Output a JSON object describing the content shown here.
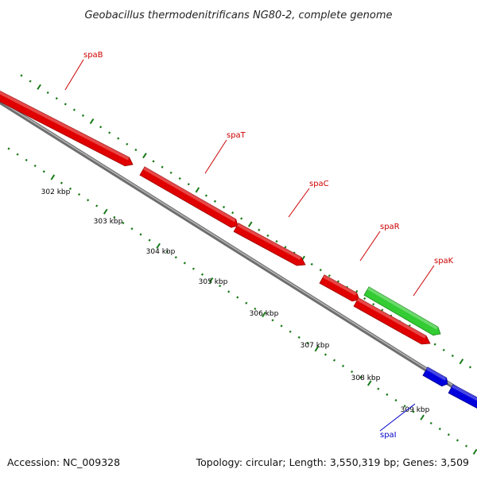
{
  "title": "Geobacillus thermodenitrificans NG80-2, complete genome",
  "footer": {
    "accession": "Accession: NC_009328",
    "summary": "Topology: circular; Length: 3,550,319 bp; Genes: 3,509"
  },
  "colors": {
    "backbone": "#8a8a8a",
    "tick": "#1a7a1a",
    "forward_gene": "#e00000",
    "green_gene": "#33cc33",
    "blue_gene": "#0000dd",
    "red_label": "#cc0000",
    "blue_label": "#0000cc"
  },
  "ticks": [
    {
      "label": "302 kbp"
    },
    {
      "label": "303 kbp"
    },
    {
      "label": "304 kbp"
    },
    {
      "label": "305 kbp"
    },
    {
      "label": "306 kbp"
    },
    {
      "label": "307 kbp"
    },
    {
      "label": "308 kbp"
    },
    {
      "label": "309 kbp"
    }
  ],
  "genes": [
    {
      "name": "spaB",
      "color": "red"
    },
    {
      "name": "spaT",
      "color": "red"
    },
    {
      "name": "spaC",
      "color": "red"
    },
    {
      "name": "spaR",
      "color": "red"
    },
    {
      "name": "spaK",
      "color": "green"
    },
    {
      "name": "spaI",
      "color": "blue"
    }
  ]
}
